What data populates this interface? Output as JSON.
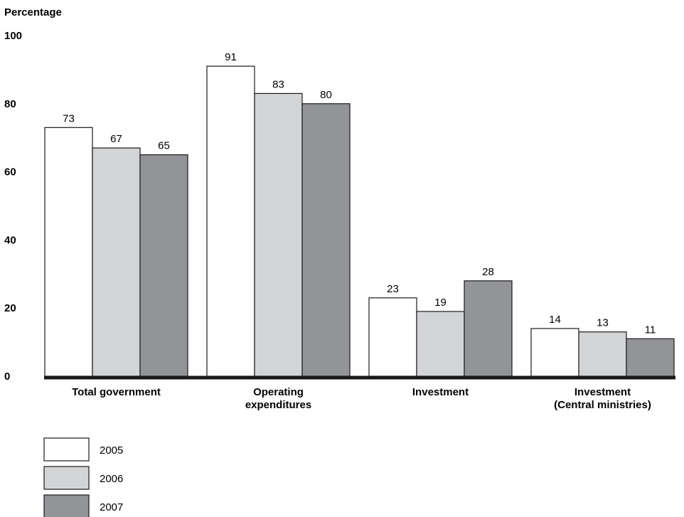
{
  "chart_data": {
    "type": "bar",
    "ylabel": "Percentage",
    "ylim": [
      0,
      100
    ],
    "yticks": [
      0,
      20,
      40,
      60,
      80,
      100
    ],
    "categories": [
      [
        "Total government"
      ],
      [
        "Operating",
        "expenditures"
      ],
      [
        "Investment"
      ],
      [
        "Investment",
        "(Central ministries)"
      ]
    ],
    "series": [
      {
        "name": "2005",
        "color": "#ffffff",
        "values": [
          73,
          91,
          23,
          14
        ]
      },
      {
        "name": "2006",
        "color": "#d3d4d6",
        "values": [
          67,
          83,
          19,
          13
        ]
      },
      {
        "name": "2007",
        "color": "#929497",
        "values": [
          65,
          80,
          28,
          11
        ]
      }
    ],
    "grid": false,
    "legend": "bottom-left"
  }
}
